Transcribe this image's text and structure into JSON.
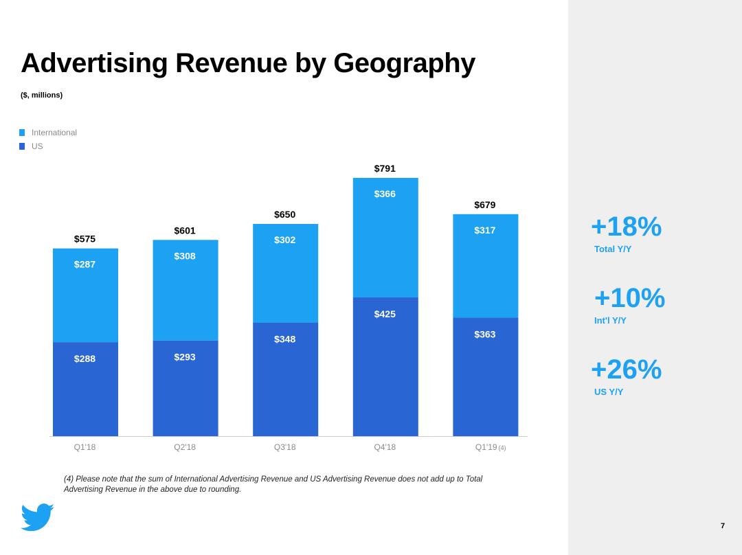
{
  "slide": {
    "title": "Advertising Revenue by Geography",
    "subtitle": "($, millions)",
    "page_number": "7",
    "footnote": "(4) Please note that the sum of International Advertising Revenue and US Advertising Revenue does not add up to Total Advertising Revenue in the above due to rounding."
  },
  "legend": [
    {
      "label": "International",
      "color": "#1da1f2"
    },
    {
      "label": "US",
      "color": "#2965d3"
    }
  ],
  "stats": [
    {
      "value": "+18%",
      "label": "Total Y/Y"
    },
    {
      "value": "+10%",
      "label": "Int'l Y/Y"
    },
    {
      "value": "+26%",
      "label": "US Y/Y"
    }
  ],
  "chart_data": {
    "type": "bar",
    "stacked": true,
    "title": "Advertising Revenue by Geography",
    "unit": "$, millions",
    "categories": [
      "Q1'18",
      "Q2'18",
      "Q3'18",
      "Q4'18",
      "Q1'19"
    ],
    "category_notes": [
      "",
      "",
      "",
      "",
      "(4)"
    ],
    "series": [
      {
        "name": "US",
        "color": "#2965d3",
        "values": [
          288,
          293,
          348,
          425,
          363
        ],
        "labels": [
          "$288",
          "$293",
          "$348",
          "$425",
          "$363"
        ]
      },
      {
        "name": "International",
        "color": "#1da1f2",
        "values": [
          287,
          308,
          302,
          366,
          317
        ],
        "labels": [
          "$287",
          "$308",
          "$302",
          "$366",
          "$317"
        ]
      }
    ],
    "totals": [
      575,
      601,
      650,
      791,
      679
    ],
    "total_labels": [
      "$575",
      "$601",
      "$650",
      "$791",
      "$679"
    ],
    "ylim": [
      0,
      800
    ],
    "grid": false,
    "xlabel": "",
    "ylabel": ""
  }
}
